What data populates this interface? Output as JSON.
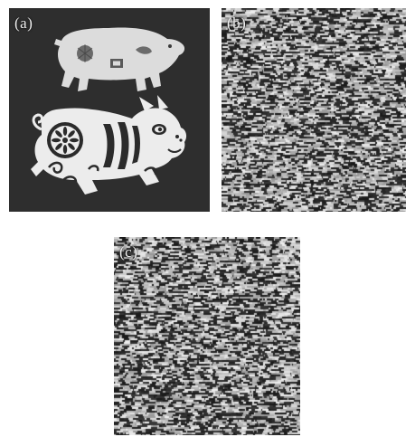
{
  "panels": [
    {
      "label": "(a)",
      "content": "photo"
    },
    {
      "label": "(b)",
      "content": "noise"
    },
    {
      "label": "(c)",
      "content": "noise"
    }
  ],
  "colors": {
    "photo_background": "#2a2a2a",
    "paper_cut": "#e9e9e9",
    "noise_dark": "#1c1c1c",
    "noise_light": "#d8d8d8"
  }
}
